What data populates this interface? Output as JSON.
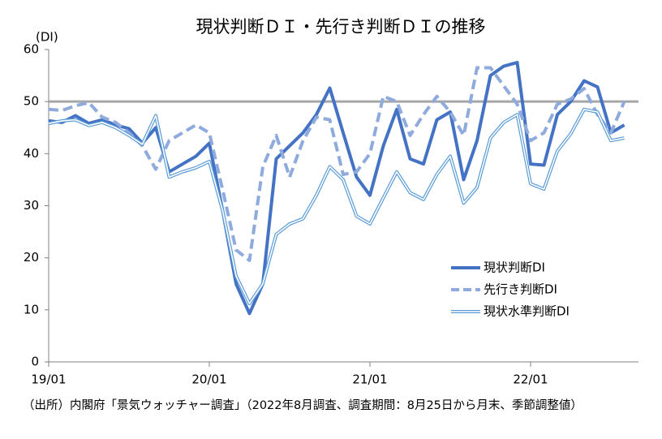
{
  "chart_data": {
    "type": "line",
    "title": "現状判断ＤＩ・先行き判断ＤＩの推移",
    "y_label": "(DI)",
    "footnote": "（出所）内閣府「景気ウォッチャー調査」（2022年8月調査、調査期間：8月25日から月末、季節調整値）",
    "categories": [
      "19/01",
      null,
      null,
      null,
      null,
      null,
      null,
      null,
      null,
      null,
      null,
      null,
      "20/01",
      null,
      null,
      null,
      null,
      null,
      null,
      null,
      null,
      null,
      null,
      null,
      "21/01",
      null,
      null,
      null,
      null,
      null,
      null,
      null,
      null,
      null,
      null,
      null,
      "22/01",
      null,
      null,
      null,
      null,
      null,
      null,
      null
    ],
    "ylim": [
      0,
      60
    ],
    "yticks": [
      0,
      10,
      20,
      30,
      40,
      50,
      60
    ],
    "reference_line": 50,
    "reference_color": "#a6a6a6",
    "legend": "right",
    "series": [
      {
        "name": "現状判断DI",
        "color": "#4472c4",
        "style": "solid",
        "values": [
          46.3,
          46,
          47.3,
          45.8,
          46.5,
          45.5,
          44.8,
          42,
          45,
          36.5,
          38,
          39.5,
          42,
          29,
          15,
          9.3,
          15,
          39,
          41.5,
          44,
          47.5,
          52.6,
          44,
          35.5,
          32,
          41.5,
          48.5,
          39,
          38,
          46.5,
          48,
          35,
          42.5,
          55,
          56.8,
          57.5,
          38,
          37.8,
          47.5,
          50,
          54,
          52.8,
          44,
          45.5
        ]
      },
      {
        "name": "先行き判断DI",
        "color": "#8faadc",
        "style": "dashed",
        "values": [
          48.5,
          48.3,
          49.2,
          49.8,
          47,
          46,
          44,
          41.5,
          37,
          42.5,
          44,
          45.5,
          44,
          33,
          21.5,
          19.5,
          37.5,
          43.5,
          35.5,
          42.5,
          47,
          46.5,
          36,
          36.5,
          40,
          51,
          50,
          43.5,
          47.5,
          51,
          48,
          43.5,
          56.5,
          56.5,
          53,
          49.5,
          42.5,
          44,
          49.5,
          50.5,
          52.5,
          47.5,
          44,
          50
        ]
      },
      {
        "name": "現状水準判断DI",
        "color": "#5b9bd5",
        "style": "double",
        "values": [
          45.8,
          46.3,
          46.5,
          45.4,
          46,
          45,
          43.5,
          41.8,
          47.3,
          35.5,
          36.5,
          37.3,
          38.5,
          29,
          16.5,
          11.2,
          15,
          24.5,
          26.5,
          27.5,
          32,
          37.5,
          35,
          28,
          26.5,
          31.5,
          36.5,
          32.5,
          31.2,
          36,
          39.5,
          30.5,
          33.5,
          43,
          46,
          47.5,
          34.2,
          33.2,
          40.5,
          43.8,
          48.5,
          48,
          42.5,
          43
        ]
      }
    ]
  }
}
